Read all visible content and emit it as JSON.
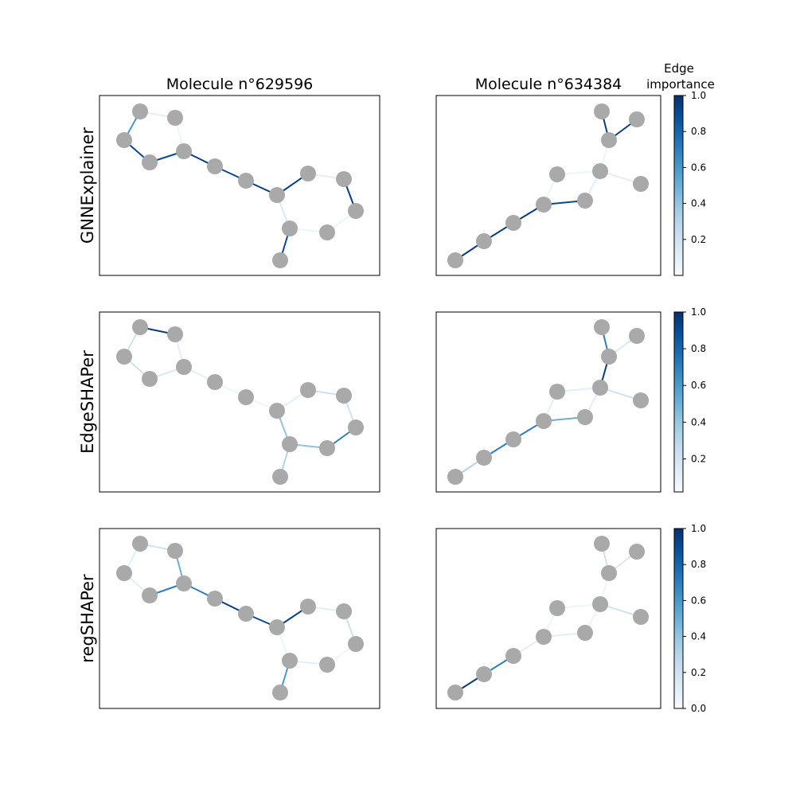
{
  "columns": [
    {
      "title": "Molecule n°629596"
    },
    {
      "title": "Molecule n°634384"
    }
  ],
  "rows": [
    {
      "label": "GNNExplainer",
      "colorbar_ticks": [
        "0.2",
        "0.4",
        "0.6",
        "0.8",
        "1.0"
      ]
    },
    {
      "label": "EdgeSHAPer",
      "colorbar_ticks": [
        "0.2",
        "0.4",
        "0.6",
        "0.8",
        "1.0"
      ]
    },
    {
      "label": "regSHAPer",
      "colorbar_ticks": [
        "0.0",
        "0.2",
        "0.4",
        "0.6",
        "0.8",
        "1.0"
      ]
    }
  ],
  "colorbar": {
    "title_line1": "Edge",
    "title_line2": "importance",
    "colormap": [
      "#f7fbff",
      "#deebf7",
      "#c6dbef",
      "#9ecae1",
      "#6baed6",
      "#4292c6",
      "#2171b5",
      "#08519c",
      "#08306b"
    ]
  },
  "node_color": "#a9a9a9",
  "chart_data": {
    "type": "graph",
    "molecules": [
      {
        "name": "Molecule n°629596",
        "edges": [
          [
            0,
            1
          ],
          [
            1,
            2
          ],
          [
            2,
            4
          ],
          [
            4,
            3
          ],
          [
            3,
            0
          ],
          [
            4,
            5
          ],
          [
            5,
            6
          ],
          [
            6,
            7
          ],
          [
            7,
            8
          ],
          [
            8,
            9
          ],
          [
            9,
            10
          ],
          [
            10,
            11
          ],
          [
            11,
            12
          ],
          [
            12,
            13
          ],
          [
            13,
            7
          ],
          [
            13,
            14
          ]
        ],
        "importance": {
          "GNNExplainer": [
            0.6,
            0.1,
            0.05,
            0.9,
            0.9,
            0.95,
            0.9,
            0.95,
            0.95,
            0.05,
            0.1,
            0.05,
            0.05,
            0.05,
            0.15,
            0.9
          ],
          "EdgeSHAPer": [
            0.2,
            0.95,
            0.1,
            0.05,
            0.2,
            0.1,
            0.05,
            0.05,
            0.1,
            0.2,
            0.2,
            0.1,
            0.2,
            0.7,
            0.4,
            0.3
          ],
          "regSHAPer": [
            0.1,
            0.2,
            0.5,
            0.7,
            0.1,
            0.7,
            0.95,
            0.9,
            0.1,
            0.2,
            0.3,
            0.05,
            0.1,
            0.05,
            0.05,
            0.6
          ]
        }
      },
      {
        "name": "Molecule n°634384",
        "edges": [
          [
            0,
            1
          ],
          [
            1,
            2
          ],
          [
            2,
            3
          ],
          [
            3,
            4
          ],
          [
            4,
            5
          ],
          [
            5,
            6
          ],
          [
            6,
            7
          ],
          [
            7,
            8
          ],
          [
            8,
            9
          ],
          [
            9,
            6
          ],
          [
            5,
            10
          ]
        ],
        "importance": {
          "GNNExplainer": [
            0.95,
            0.95,
            0.95,
            0.9,
            0.1,
            0.05,
            0.05,
            0.05,
            0.95,
            0.95,
            0.1
          ],
          "EdgeSHAPer": [
            0.3,
            0.7,
            0.7,
            0.5,
            0.1,
            0.1,
            0.95,
            0.7,
            0.15,
            0.1,
            0.2
          ],
          "regSHAPer": [
            0.95,
            0.7,
            0.1,
            0.1,
            0.05,
            0.05,
            0.05,
            0.2,
            0.15,
            0.2,
            0.2
          ]
        }
      }
    ]
  }
}
